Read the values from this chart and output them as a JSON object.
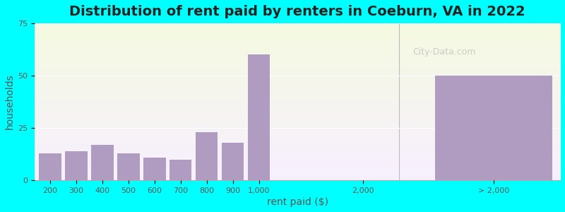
{
  "title": "Distribution of rent paid by renters in Coeburn, VA in 2022",
  "xlabel": "rent paid ($)",
  "ylabel": "households",
  "background_color": "#00FFFF",
  "bar_color": "#b09cc0",
  "categories": [
    "200",
    "300",
    "400",
    "500",
    "600",
    "700",
    "800",
    "900",
    "1,000",
    "2,000",
    "> 2,000"
  ],
  "values": [
    13,
    14,
    17,
    13,
    11,
    10,
    23,
    18,
    60,
    0,
    50
  ],
  "ylim": [
    0,
    75
  ],
  "yticks": [
    0,
    25,
    50,
    75
  ],
  "title_fontsize": 14,
  "axis_label_fontsize": 10,
  "tick_fontsize": 8,
  "watermark_text": "City-Data.com"
}
